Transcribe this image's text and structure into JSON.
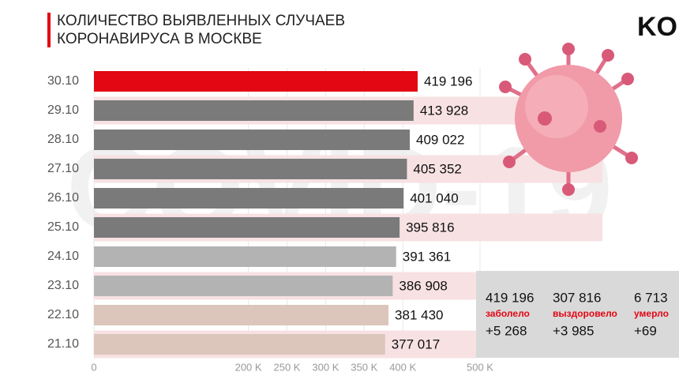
{
  "chart_data": {
    "type": "bar",
    "orientation": "horizontal",
    "title": [
      "КОЛИЧЕСТВО ВЫЯВЛЕННЫХ СЛУЧАЕВ",
      "КОРОНАВИРУСА В МОСКВЕ"
    ],
    "logo": "KO",
    "watermark": "COVID-19",
    "categories": [
      "30.10",
      "29.10",
      "28.10",
      "27.10",
      "26.10",
      "25.10",
      "24.10",
      "23.10",
      "22.10",
      "21.10"
    ],
    "values": [
      419196,
      413928,
      409022,
      405352,
      401040,
      395816,
      391361,
      386908,
      381430,
      377017
    ],
    "value_labels": [
      "419 196",
      "413 928",
      "409 022",
      "405 352",
      "401 040",
      "395 816",
      "391 361",
      "386 908",
      "381 430",
      "377 017"
    ],
    "colors": [
      "#e30613",
      "#7a7a7a",
      "#7a7a7a",
      "#7a7a7a",
      "#7a7a7a",
      "#7a7a7a",
      "#b3b3b3",
      "#b3b3b3",
      "#dcc5bb",
      "#dcc5bb"
    ],
    "xlim": [
      0,
      500000
    ],
    "xticks": [
      0,
      {
        "value": 200000,
        "label": "200 K"
      },
      {
        "value": 250000,
        "label": "250 K"
      },
      {
        "value": 300000,
        "label": "300 K"
      },
      {
        "value": 350000,
        "label": "350 K"
      },
      {
        "value": 400000,
        "label": "400 K"
      },
      {
        "value": 500000,
        "label": "500 K"
      }
    ],
    "summary": [
      {
        "value": "419 196",
        "label": "заболело",
        "delta": "+5 268"
      },
      {
        "value": "307 816",
        "label": "выздоровело",
        "delta": "+3 985"
      },
      {
        "value": "6 713",
        "label": "умерло",
        "delta": "+69"
      }
    ]
  }
}
